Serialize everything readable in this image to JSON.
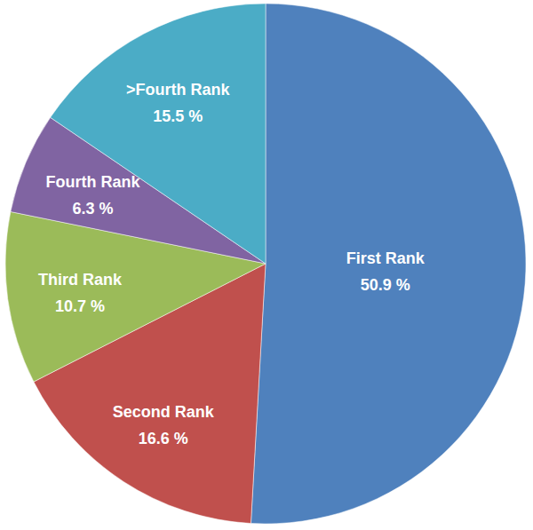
{
  "chart_data": {
    "type": "pie",
    "categories": [
      "First Rank",
      "Second Rank",
      "Third Rank",
      "Fourth Rank",
      ">Fourth Rank"
    ],
    "values": [
      50.9,
      16.6,
      10.7,
      6.3,
      15.5
    ],
    "value_labels": [
      "50.9 %",
      "16.6 %",
      "10.7 %",
      "6.3 %",
      "15.5 %"
    ],
    "colors": [
      "#4f81bd",
      "#c0504d",
      "#9bbb59",
      "#8064a2",
      "#4bacc6"
    ],
    "data_labels": true
  }
}
